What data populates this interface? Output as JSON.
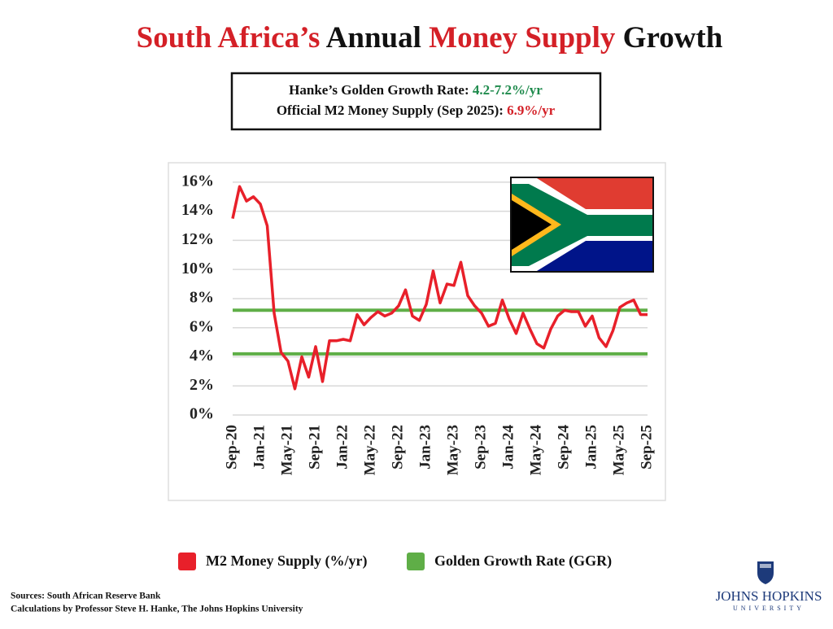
{
  "chart_data": {
    "type": "line",
    "title_parts": [
      {
        "text": "South Africa’s",
        "color": "#d42027"
      },
      {
        "text": "Annual",
        "color": "#111111"
      },
      {
        "text": "Money Supply",
        "color": "#d42027"
      },
      {
        "text": "Growth",
        "color": "#111111"
      }
    ],
    "notes": [
      {
        "label": "Hanke’s Golden Growth Rate:",
        "value": "4.2-7.2%/yr",
        "color": "#1e8a4c"
      },
      {
        "label": "Official M2 Money Supply (Sep 2025):",
        "value": "6.9%/yr",
        "color": "#d42027"
      }
    ],
    "categories": [
      "Sep-20",
      null,
      null,
      null,
      "Jan-21",
      null,
      null,
      null,
      "May-21",
      null,
      null,
      null,
      "Sep-21",
      null,
      null,
      null,
      "Jan-22",
      null,
      null,
      null,
      "May-22",
      null,
      null,
      null,
      "Sep-22",
      null,
      null,
      null,
      "Jan-23",
      null,
      null,
      null,
      "May-23",
      null,
      null,
      null,
      "Sep-23",
      null,
      null,
      null,
      "Jan-24",
      null,
      null,
      null,
      "May-24",
      null,
      null,
      null,
      "Sep-24",
      null,
      null,
      null,
      "Jan-25",
      null,
      null,
      null,
      "May-25",
      null,
      null,
      null,
      "Sep-25"
    ],
    "series": [
      {
        "name": "M2 Money Supply (%/yr)",
        "color": "#e8202a",
        "values": [
          13.5,
          15.7,
          14.7,
          15.0,
          14.5,
          13.0,
          7.0,
          4.3,
          3.7,
          1.8,
          4.0,
          2.6,
          4.7,
          2.3,
          5.1,
          5.1,
          5.2,
          5.1,
          6.9,
          6.2,
          6.7,
          7.1,
          6.8,
          7.0,
          7.5,
          8.6,
          6.8,
          6.5,
          7.6,
          9.9,
          7.7,
          9.0,
          8.9,
          10.5,
          8.2,
          7.5,
          7.0,
          6.1,
          6.3,
          7.9,
          6.6,
          5.6,
          7.0,
          5.9,
          4.9,
          4.6,
          5.9,
          6.8,
          7.2,
          7.1,
          7.1,
          6.1,
          6.8,
          5.3,
          4.7,
          5.8,
          7.4,
          7.7,
          7.9,
          6.9,
          6.9
        ]
      }
    ],
    "reference_lines": {
      "name": "Golden Growth Rate (GGR)",
      "color": "#5fae47",
      "values": [
        4.2,
        7.2
      ]
    },
    "ylim": [
      0,
      17
    ],
    "yticks": [
      {
        "value": 0,
        "label": "0%"
      },
      {
        "value": 2,
        "label": "2%"
      },
      {
        "value": 4,
        "label": "4%"
      },
      {
        "value": 6,
        "label": "6%"
      },
      {
        "value": 8,
        "label": "8%"
      },
      {
        "value": 10,
        "label": "10%"
      },
      {
        "value": 12,
        "label": "12%"
      },
      {
        "value": 14,
        "label": "14%"
      },
      {
        "value": 16,
        "label": "16%"
      }
    ],
    "grid": true,
    "sources": [
      "Sources: South African Reserve Bank",
      "Calculations by Professor Steve H. Hanke, The Johns Hopkins University"
    ],
    "logo": [
      "JOHNS HOPKINS",
      "UNIVERSITY"
    ]
  }
}
